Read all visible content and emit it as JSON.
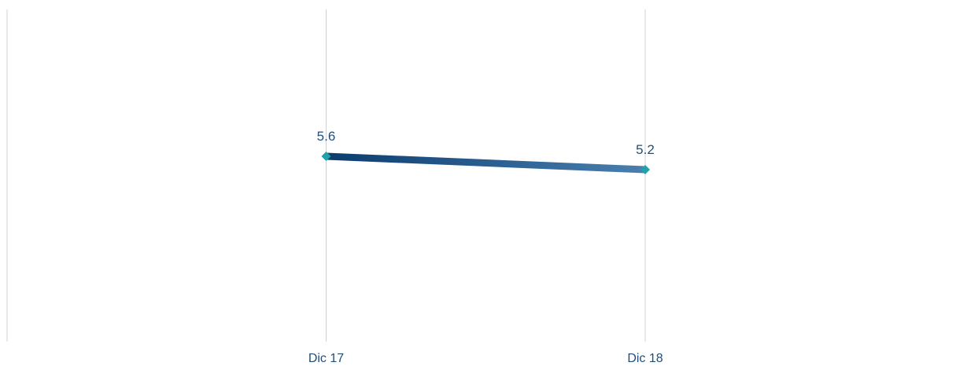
{
  "chart_data": {
    "type": "line",
    "categories": [
      "Dic 17",
      "Dic 18"
    ],
    "series": [
      {
        "values": [
          5.6,
          5.2
        ],
        "data_labels": [
          "5.6",
          "5.2"
        ]
      }
    ],
    "ylim": [
      0,
      10
    ],
    "grid": "vertical",
    "legend": "none",
    "colors": {
      "line_start": "#0b3c6e",
      "line_end": "#4a7fb0",
      "marker": "#1fa3a8",
      "label": "#1f4e79",
      "grid": "#d0d0d0"
    }
  }
}
